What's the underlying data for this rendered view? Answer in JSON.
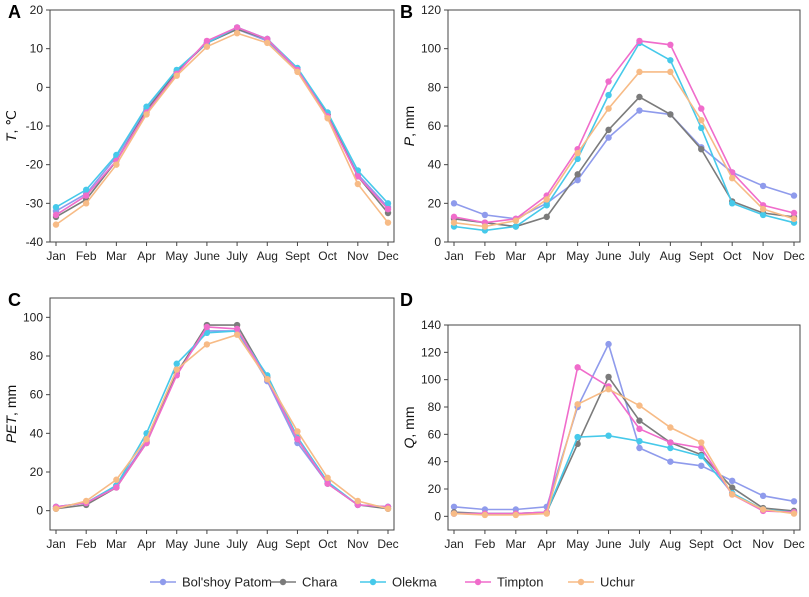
{
  "chart_data": [
    {
      "panel": "A",
      "type": "line",
      "ylabel_var": "T",
      "ylabel_unit": ", ℃",
      "ylim": [
        -40,
        20
      ],
      "yticks": [
        -40,
        -30,
        -20,
        -10,
        0,
        10,
        20
      ],
      "categories": [
        "Jan",
        "Feb",
        "Mar",
        "Apr",
        "May",
        "June",
        "July",
        "Aug",
        "Sept",
        "Oct",
        "Nov",
        "Dec"
      ],
      "series": [
        {
          "name": "Bol'shoy Patom",
          "values": [
            -32,
            -27.5,
            -18,
            -5.5,
            4,
            11.5,
            15,
            12,
            4.5,
            -7,
            -22.5,
            -31
          ]
        },
        {
          "name": "Chara",
          "values": [
            -33.5,
            -29,
            -19,
            -6,
            4,
            11.5,
            15,
            12.5,
            4.5,
            -7,
            -23,
            -32.5
          ]
        },
        {
          "name": "Olekma",
          "values": [
            -31,
            -26.5,
            -17.5,
            -5,
            4.5,
            11.5,
            15.5,
            12.5,
            5,
            -6.5,
            -21.5,
            -30
          ]
        },
        {
          "name": "Timpton",
          "values": [
            -33,
            -28,
            -19,
            -6.5,
            3.5,
            12,
            15.5,
            12.5,
            4.5,
            -7.5,
            -23,
            -31.5
          ]
        },
        {
          "name": "Uchur",
          "values": [
            -35.5,
            -30,
            -20,
            -7,
            3,
            10.5,
            14,
            11.5,
            4,
            -8,
            -25,
            -35
          ]
        }
      ]
    },
    {
      "panel": "B",
      "type": "line",
      "ylabel_var": "P",
      "ylabel_unit": ", mm",
      "ylim": [
        0,
        120
      ],
      "yticks": [
        0,
        20,
        40,
        60,
        80,
        100,
        120
      ],
      "categories": [
        "Jan",
        "Feb",
        "Mar",
        "Apr",
        "May",
        "June",
        "July",
        "Aug",
        "Sept",
        "Oct",
        "Nov",
        "Dec"
      ],
      "series": [
        {
          "name": "Bol'shoy Patom",
          "values": [
            20,
            14,
            12,
            20,
            32,
            54,
            68,
            66,
            49,
            36,
            29,
            24
          ]
        },
        {
          "name": "Chara",
          "values": [
            12,
            10,
            8,
            13,
            35,
            58,
            75,
            66,
            48,
            21,
            15,
            13
          ]
        },
        {
          "name": "Olekma",
          "values": [
            8,
            6,
            8,
            19,
            43,
            76,
            103,
            94,
            59,
            20,
            14,
            10
          ]
        },
        {
          "name": "Timpton",
          "values": [
            13,
            10,
            12,
            24,
            48,
            83,
            104,
            102,
            69,
            36,
            19,
            15
          ]
        },
        {
          "name": "Uchur",
          "values": [
            10,
            8,
            11,
            22,
            46,
            69,
            88,
            88,
            63,
            33,
            17,
            12
          ]
        }
      ]
    },
    {
      "panel": "C",
      "type": "line",
      "ylabel_var": "PET",
      "ylabel_unit": ", mm",
      "ylim": [
        -10,
        110
      ],
      "yticks": [
        0,
        20,
        40,
        60,
        80,
        100
      ],
      "categories": [
        "Jan",
        "Feb",
        "Mar",
        "Apr",
        "May",
        "June",
        "July",
        "Aug",
        "Sept",
        "Oct",
        "Nov",
        "Dec"
      ],
      "series": [
        {
          "name": "Bol'shoy Patom",
          "values": [
            2,
            4,
            13,
            36,
            72,
            93,
            93,
            67,
            35,
            14,
            3,
            2
          ]
        },
        {
          "name": "Chara",
          "values": [
            1,
            3,
            12,
            35,
            71,
            96,
            96,
            69,
            37,
            14,
            3,
            1
          ]
        },
        {
          "name": "Olekma",
          "values": [
            2,
            4,
            13,
            40,
            76,
            92,
            93,
            70,
            38,
            15,
            3,
            2
          ]
        },
        {
          "name": "Timpton",
          "values": [
            2,
            4,
            12,
            35,
            70,
            95,
            94,
            68,
            37,
            14,
            3,
            2
          ]
        },
        {
          "name": "Uchur",
          "values": [
            1,
            5,
            16,
            37,
            73,
            86,
            91,
            68,
            41,
            17,
            5,
            1
          ]
        }
      ]
    },
    {
      "panel": "D",
      "type": "line",
      "ylabel_var": "Q",
      "ylabel_unit": ", mm",
      "ylim": [
        -10,
        140
      ],
      "yticks": [
        0,
        20,
        40,
        60,
        80,
        100,
        120,
        140
      ],
      "categories": [
        "Jan",
        "Feb",
        "Mar",
        "Apr",
        "May",
        "June",
        "July",
        "Aug",
        "Sept",
        "Oct",
        "Nov",
        "Dec"
      ],
      "series": [
        {
          "name": "Bol'shoy Patom",
          "values": [
            7,
            5,
            5,
            7,
            80,
            126,
            50,
            40,
            37,
            26,
            15,
            11
          ]
        },
        {
          "name": "Chara",
          "values": [
            3,
            2,
            2,
            3,
            53,
            102,
            70,
            54,
            45,
            21,
            6,
            4
          ]
        },
        {
          "name": "Olekma",
          "values": [
            2,
            2,
            2,
            3,
            58,
            59,
            55,
            50,
            44,
            17,
            5,
            3
          ]
        },
        {
          "name": "Timpton",
          "values": [
            2,
            2,
            2,
            3,
            109,
            95,
            64,
            54,
            50,
            16,
            4,
            3
          ]
        },
        {
          "name": "Uchur",
          "values": [
            2,
            1,
            1,
            2,
            82,
            93,
            81,
            65,
            54,
            16,
            5,
            2
          ]
        }
      ]
    }
  ],
  "legend": {
    "placement": "bottom",
    "items": [
      {
        "name": "Bol'shoy Patom",
        "color": "#8f9bec"
      },
      {
        "name": "Chara",
        "color": "#7b7b7b"
      },
      {
        "name": "Olekma",
        "color": "#46c9ea"
      },
      {
        "name": "Timpton",
        "color": "#f06ccb"
      },
      {
        "name": "Uchur",
        "color": "#f7bb86"
      }
    ]
  }
}
